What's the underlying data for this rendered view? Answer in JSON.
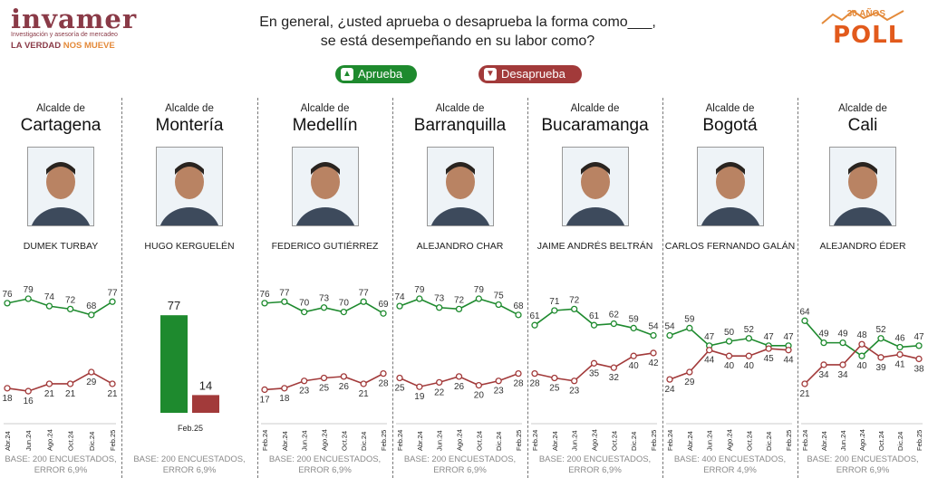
{
  "header": {
    "logo_name": "invamer",
    "logo_sub": "Investigación y asesoría de mercadeo",
    "slogan_a": "LA VERDAD",
    "slogan_b": "NOS MUEVE",
    "question_line1": "En general, ¿usted aprueba o desaprueba la forma como___,",
    "question_line2": "se está desempeñando en su labor como?",
    "poll_years": "30 AÑOS",
    "poll_word": "POLL"
  },
  "legend": {
    "approve": "Aprueba",
    "disapprove": "Desaprueba"
  },
  "colors": {
    "approve": "#1e8a2e",
    "disapprove": "#a23a3a",
    "text": "#222222",
    "muted": "#8a8a8a"
  },
  "panels": [
    {
      "alcalde": "Alcalde de",
      "city": "Cartagena",
      "name": "DUMEK TURBAY",
      "base_line1": "BASE: 200 ENCUESTADOS,",
      "base_line2": "ERROR 6,9%"
    },
    {
      "alcalde": "Alcalde de",
      "city": "Montería",
      "name": "HUGO KERGUELÉN",
      "base_line1": "BASE: 200 ENCUESTADOS,",
      "base_line2": "ERROR 6,9%"
    },
    {
      "alcalde": "Alcalde de",
      "city": "Medellín",
      "name": "FEDERICO GUTIÉRREZ",
      "base_line1": "BASE: 200 ENCUESTADOS,",
      "base_line2": "ERROR 6,9%"
    },
    {
      "alcalde": "Alcalde de",
      "city": "Barranquilla",
      "name": "ALEJANDRO CHAR",
      "base_line1": "BASE: 200 ENCUESTADOS,",
      "base_line2": "ERROR 6,9%"
    },
    {
      "alcalde": "Alcalde de",
      "city": "Bucaramanga",
      "name": "JAIME ANDRÉS BELTRÁN",
      "base_line1": "BASE: 200 ENCUESTADOS,",
      "base_line2": "ERROR 6,9%"
    },
    {
      "alcalde": "Alcalde de",
      "city": "Bogotá",
      "name": "CARLOS FERNANDO GALÁN",
      "base_line1": "BASE: 400 ENCUESTADOS,",
      "base_line2": "ERROR 4,9%"
    },
    {
      "alcalde": "Alcalde de",
      "city": "Cali",
      "name": "ALEJANDRO ÉDER",
      "base_line1": "BASE: 200 ENCUESTADOS,",
      "base_line2": "ERROR 6,9%"
    }
  ],
  "chart_data": [
    {
      "type": "line",
      "categories": [
        "Abr.24",
        "Jun.24",
        "Ago.24",
        "Oct.24",
        "Dic.24",
        "Feb.25"
      ],
      "ylim": [
        0,
        100
      ],
      "series": [
        {
          "name": "Aprueba",
          "values": [
            76,
            79,
            74,
            72,
            68,
            77
          ]
        },
        {
          "name": "Desaprueba",
          "values": [
            18,
            16,
            21,
            21,
            29,
            21
          ]
        }
      ]
    },
    {
      "type": "bar",
      "categories": [
        "Feb.25"
      ],
      "ylim": [
        0,
        100
      ],
      "series": [
        {
          "name": "Aprueba",
          "values": [
            77
          ]
        },
        {
          "name": "Desaprueba",
          "values": [
            14
          ]
        }
      ]
    },
    {
      "type": "line",
      "categories": [
        "Feb.24",
        "Abr.24",
        "Jun.24",
        "Ago.24",
        "Oct.24",
        "Dic.24",
        "Feb.25"
      ],
      "ylim": [
        0,
        100
      ],
      "series": [
        {
          "name": "Aprueba",
          "values": [
            76,
            77,
            70,
            73,
            70,
            77,
            69
          ]
        },
        {
          "name": "Desaprueba",
          "values": [
            17,
            18,
            23,
            25,
            26,
            21,
            28
          ]
        }
      ]
    },
    {
      "type": "line",
      "categories": [
        "Feb.24",
        "Abr.24",
        "Jun.24",
        "Ago.24",
        "Oct.24",
        "Dic.24",
        "Feb.25"
      ],
      "ylim": [
        0,
        100
      ],
      "series": [
        {
          "name": "Aprueba",
          "values": [
            74,
            79,
            73,
            72,
            79,
            75,
            68
          ]
        },
        {
          "name": "Desaprueba",
          "values": [
            25,
            19,
            22,
            26,
            20,
            23,
            28
          ]
        }
      ]
    },
    {
      "type": "line",
      "categories": [
        "Feb.24",
        "Abr.24",
        "Jun.24",
        "Ago.24",
        "Oct.24",
        "Dic.24",
        "Feb.25"
      ],
      "ylim": [
        0,
        100
      ],
      "series": [
        {
          "name": "Aprueba",
          "values": [
            61,
            71,
            72,
            61,
            62,
            59,
            54
          ]
        },
        {
          "name": "Desaprueba",
          "values": [
            28,
            25,
            23,
            35,
            32,
            40,
            42
          ]
        }
      ]
    },
    {
      "type": "line",
      "categories": [
        "Feb.24",
        "Abr.24",
        "Jun.24",
        "Ago.24",
        "Oct.24",
        "Dic.24",
        "Feb.25"
      ],
      "ylim": [
        0,
        100
      ],
      "series": [
        {
          "name": "Aprueba",
          "values": [
            54,
            59,
            47,
            50,
            52,
            47,
            47
          ]
        },
        {
          "name": "Desaprueba",
          "values": [
            24,
            29,
            44,
            40,
            40,
            45,
            44
          ]
        }
      ]
    },
    {
      "type": "line",
      "categories": [
        "Feb.24",
        "Abr.24",
        "Jun.24",
        "Ago.24",
        "Oct.24",
        "Dic.24",
        "Feb.25"
      ],
      "ylim": [
        0,
        100
      ],
      "series": [
        {
          "name": "Aprueba",
          "values": [
            64,
            49,
            49,
            40,
            52,
            46,
            47
          ]
        },
        {
          "name": "Desaprueba",
          "values": [
            21,
            34,
            34,
            48,
            39,
            41,
            38
          ]
        }
      ]
    }
  ]
}
